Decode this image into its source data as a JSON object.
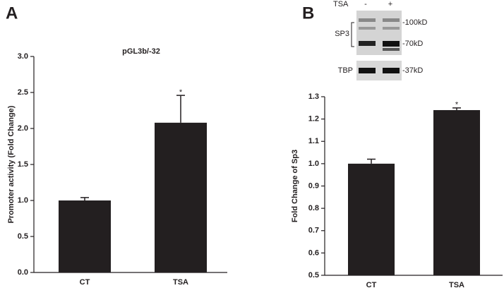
{
  "chart_data": [
    {
      "type": "bar",
      "panel_label": "A",
      "title": "pGL3b/-32",
      "y_label": "Promoter activity (Fold Change)",
      "categories": [
        "CT",
        "TSA"
      ],
      "values": [
        1.0,
        2.08
      ],
      "errors": [
        0.04,
        0.38
      ],
      "color": "#231f20",
      "annotation": "*",
      "ylim": [
        0,
        3.0
      ],
      "yticks": [
        {
          "value": 0,
          "label": "0.0"
        },
        0.5,
        {
          "value": 1,
          "label": "1.0"
        },
        1.5,
        {
          "value": 2,
          "label": "2.0"
        },
        2.5,
        {
          "value": 3,
          "label": "3.0"
        }
      ]
    },
    {
      "type": "bar",
      "panel_label": "B",
      "y_label": "Fold Change of Sp3",
      "categories": [
        "CT",
        "TSA"
      ],
      "values": [
        1.0,
        1.24
      ],
      "errors": [
        0.02,
        0.01
      ],
      "color": "#231f20",
      "annotation": "*",
      "ylim": [
        0.5,
        1.3
      ],
      "yticks": [
        0.5,
        0.6,
        0.7,
        0.8,
        0.9,
        {
          "value": 1,
          "label": "1.0"
        },
        1.1,
        1.2,
        1.3
      ]
    }
  ],
  "blot": {
    "treatment": "TSA",
    "lanes": [
      "-",
      "+"
    ],
    "proteins": [
      "SP3",
      "TBP"
    ],
    "markers": [
      "-100kD",
      "-70kD",
      "-37kD"
    ]
  }
}
